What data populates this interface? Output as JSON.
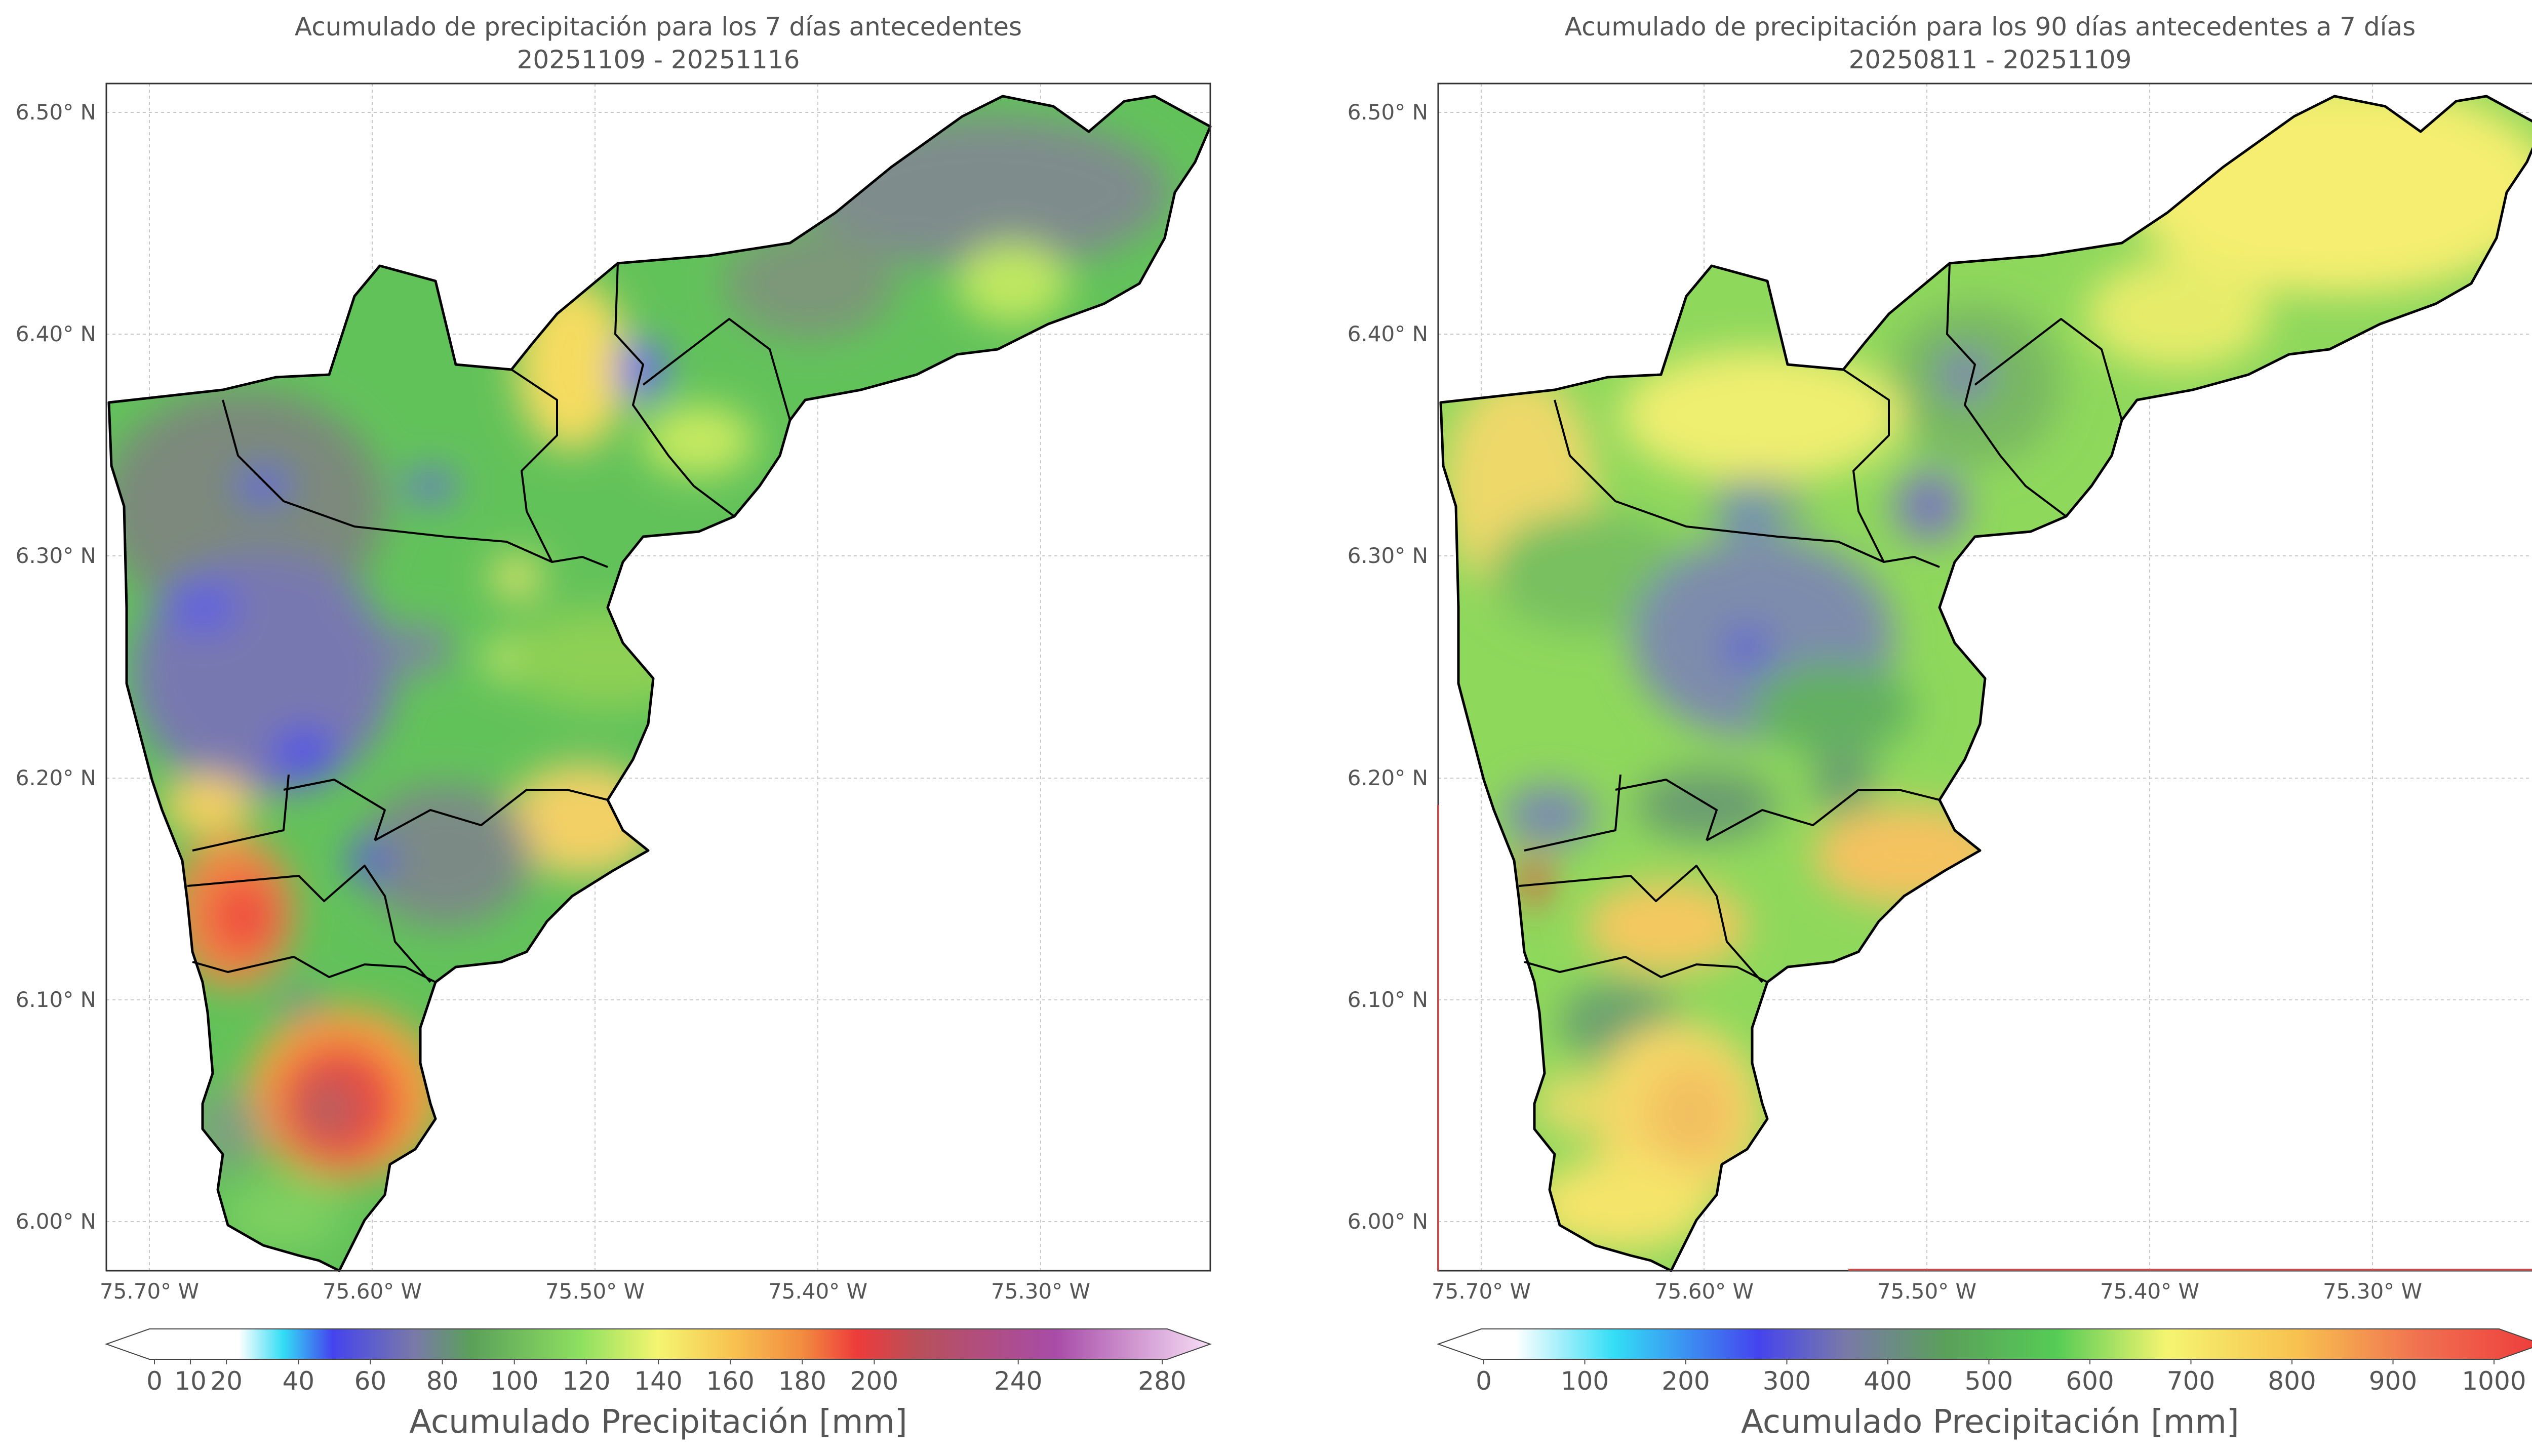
{
  "left_map": {
    "title_line1": "Acumulado de precipitación para los 7 días antecedentes",
    "title_line2": "20251109 - 20251116",
    "colorbar_label": "Acumulado Precipitación [mm]",
    "colorbar_ticks": [
      "0",
      "10",
      "20",
      "40",
      "60",
      "80",
      "100",
      "120",
      "140",
      "160",
      "180",
      "200",
      "240",
      "280"
    ],
    "colorbar_values": [
      0,
      10,
      20,
      40,
      60,
      80,
      100,
      120,
      140,
      160,
      180,
      200,
      240,
      280
    ],
    "colorbar_colors": [
      "#ffffff",
      "#bff7ff",
      "#33ddf5",
      "#4444ee",
      "#7a7aa8",
      "#5aa05a",
      "#55cc55",
      "#9fe060",
      "#f5f570",
      "#f8c050",
      "#f28c40",
      "#ee3b3b",
      "#b8505a",
      "#a84ca8",
      "#f4d4f4"
    ]
  },
  "right_map": {
    "title_line1": "Acumulado de precipitación para los 90 días antecedentes a 7 días",
    "title_line2": "20250811 - 20251109",
    "colorbar_label": "Acumulado Precipitación [mm]",
    "colorbar_ticks": [
      "0",
      "100",
      "200",
      "300",
      "400",
      "500",
      "600",
      "700",
      "800",
      "900",
      "1000"
    ],
    "colorbar_values": [
      0,
      100,
      200,
      300,
      400,
      500,
      600,
      700,
      800,
      900,
      1000
    ],
    "colorbar_colors": [
      "#ffffff",
      "#ffffff",
      "#33ddf5",
      "#4444ee",
      "#7a7aa8",
      "#5aa05a",
      "#55cc55",
      "#c8f060",
      "#f5f570",
      "#f8c050",
      "#f07050",
      "#ee3b3b"
    ]
  },
  "axes": {
    "lat_labels": [
      "6.50° N",
      "6.40° N",
      "6.30° N",
      "6.20° N",
      "6.10° N",
      "6.00° N"
    ],
    "lat_values": [
      6.5,
      6.4,
      6.3,
      6.2,
      6.1,
      6.0
    ],
    "lon_labels": [
      "75.70° W",
      "75.60° W",
      "75.50° W",
      "75.40° W",
      "75.30° W"
    ],
    "lon_values": [
      -75.7,
      -75.6,
      -75.5,
      -75.4,
      -75.3
    ]
  }
}
